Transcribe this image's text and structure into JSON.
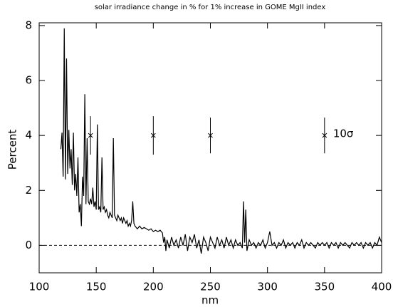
{
  "chart_data": {
    "type": "line",
    "title": "solar irradiance change in % for 1% increase in GOME MgII index",
    "x_label": "nm",
    "y_label": "Percent",
    "xlim": [
      100,
      400
    ],
    "ylim": [
      -1,
      8.1
    ],
    "xticks": [
      100,
      150,
      200,
      250,
      300,
      350,
      400
    ],
    "yticks": [
      0,
      2,
      4,
      6,
      8
    ],
    "reference_line": 0,
    "series": [
      {
        "color": "#000000",
        "x": [
          119,
          120,
          121,
          122,
          123,
          124,
          125,
          126,
          127,
          128,
          129,
          130,
          131,
          132,
          133,
          134,
          135,
          136,
          137,
          138,
          139,
          140,
          141,
          142,
          143,
          144,
          145,
          146,
          147,
          148,
          149,
          150,
          151,
          152,
          153,
          154,
          155,
          156,
          157,
          158,
          159,
          160,
          161,
          162,
          163,
          164,
          165,
          166,
          167,
          168,
          169,
          170,
          171,
          172,
          173,
          174,
          175,
          176,
          177,
          178,
          179,
          180,
          181,
          182,
          183,
          184,
          186,
          188,
          190,
          192,
          194,
          196,
          198,
          200,
          202,
          204,
          206,
          208,
          209,
          210,
          211,
          212,
          214,
          216,
          218,
          220,
          222,
          224,
          226,
          228,
          230,
          232,
          234,
          236,
          238,
          240,
          242,
          244,
          246,
          248,
          250,
          252,
          254,
          256,
          258,
          260,
          262,
          264,
          266,
          268,
          270,
          272,
          274,
          276,
          278,
          279,
          280,
          281,
          282,
          284,
          286,
          288,
          290,
          292,
          294,
          296,
          298,
          300,
          302,
          304,
          306,
          308,
          310,
          312,
          314,
          316,
          318,
          320,
          322,
          324,
          326,
          328,
          330,
          332,
          334,
          336,
          338,
          340,
          342,
          344,
          346,
          348,
          350,
          352,
          354,
          356,
          358,
          360,
          362,
          364,
          366,
          368,
          370,
          372,
          374,
          376,
          378,
          380,
          382,
          384,
          386,
          388,
          390,
          392,
          394,
          396,
          398,
          400
        ],
        "values": [
          3.5,
          4.1,
          2.5,
          7.9,
          2.4,
          6.8,
          2.6,
          4.2,
          2.8,
          3.5,
          2.2,
          4.1,
          2.0,
          2.6,
          1.8,
          3.2,
          1.2,
          1.5,
          0.7,
          2.5,
          1.8,
          5.5,
          1.5,
          3.9,
          1.6,
          1.5,
          1.7,
          1.5,
          2.1,
          1.4,
          1.6,
          1.3,
          4.4,
          1.3,
          1.4,
          1.2,
          3.2,
          1.3,
          1.4,
          1.2,
          1.3,
          1.1,
          1.0,
          1.2,
          1.1,
          1.0,
          3.9,
          1.1,
          1.0,
          0.9,
          1.1,
          1.0,
          0.9,
          1.0,
          0.8,
          1.0,
          0.9,
          0.8,
          0.9,
          0.7,
          0.8,
          0.7,
          0.9,
          1.6,
          0.8,
          0.7,
          0.6,
          0.7,
          0.6,
          0.65,
          0.6,
          0.55,
          0.6,
          0.5,
          0.55,
          0.5,
          0.55,
          0.45,
          0.1,
          0.3,
          -0.2,
          0.2,
          -0.1,
          0.3,
          0.0,
          0.2,
          -0.1,
          0.3,
          0.0,
          0.4,
          -0.2,
          0.3,
          0.1,
          0.4,
          -0.1,
          0.2,
          -0.3,
          0.3,
          0.1,
          -0.2,
          0.3,
          0.1,
          -0.1,
          0.3,
          0.0,
          0.2,
          -0.1,
          0.3,
          0.0,
          0.2,
          -0.1,
          0.2,
          0.0,
          0.1,
          -0.1,
          1.6,
          0.1,
          1.3,
          -0.2,
          0.2,
          0.0,
          0.1,
          -0.1,
          0.1,
          0.0,
          0.2,
          -0.1,
          0.1,
          0.5,
          0.0,
          0.1,
          -0.1,
          0.1,
          0.0,
          0.2,
          -0.1,
          0.1,
          0.0,
          0.1,
          -0.1,
          0.1,
          0.0,
          0.2,
          -0.1,
          0.1,
          0.0,
          0.1,
          0.0,
          -0.1,
          0.1,
          0.0,
          0.1,
          0.0,
          0.1,
          -0.1,
          0.1,
          0.0,
          0.1,
          -0.1,
          0.1,
          0.0,
          0.1,
          0.0,
          -0.1,
          0.1,
          0.0,
          0.1,
          0.0,
          0.1,
          -0.1,
          0.1,
          0.0,
          0.1,
          -0.1,
          0.1,
          0.0,
          0.3,
          0.1
        ]
      }
    ],
    "error_bars": {
      "x": [
        145,
        200,
        250,
        350
      ],
      "values": [
        4,
        4,
        4,
        4
      ],
      "errors": [
        0.7,
        0.7,
        0.65,
        0.65
      ]
    },
    "annotation": "10σ"
  }
}
